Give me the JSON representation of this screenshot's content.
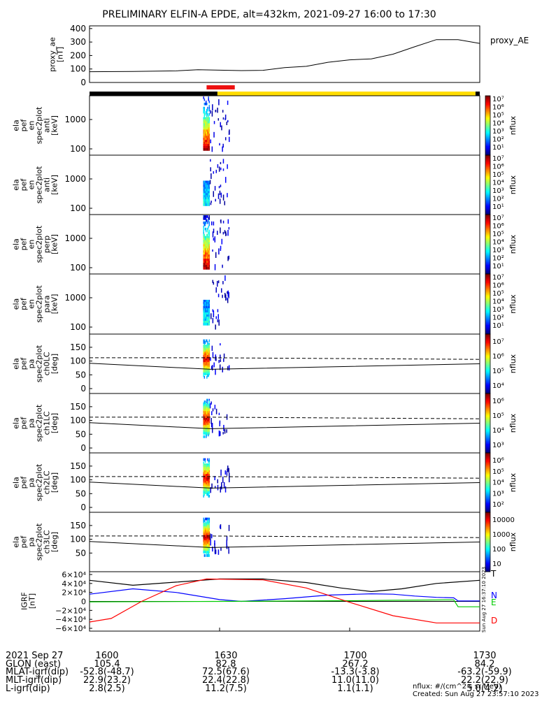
{
  "chart_data": {
    "type": "spectrogram-stack",
    "title": "PRELIMINARY ELFIN-A EPDE, alt=432km, 2021-09-27 16:00 to 17:30",
    "x": {
      "range": [
        "16:00",
        "17:30"
      ],
      "tick_labels": [
        "1600",
        "1630",
        "1700",
        "1730"
      ]
    },
    "proxy_ae": {
      "ylabel": "proxy_ae\n[nT]",
      "legend": "proxy_AE",
      "ylim": [
        0,
        420
      ],
      "yticks": [
        "400",
        "300",
        "200",
        "100",
        "0"
      ],
      "t_min": [
        0,
        10,
        20,
        25,
        35,
        40,
        45,
        50,
        55,
        60,
        65,
        70,
        75,
        80,
        85,
        90
      ],
      "values": [
        80,
        82,
        86,
        95,
        88,
        90,
        110,
        120,
        150,
        168,
        175,
        210,
        265,
        318,
        318,
        290
      ]
    },
    "status_bar": {
      "black_segments": [
        [
          0,
          29.5
        ],
        [
          89,
          90
        ]
      ],
      "yellow_segments": [
        [
          29.5,
          89
        ]
      ],
      "red_segment": [
        27,
        33.5
      ]
    },
    "energy_panels": [
      {
        "ylabel": "ela\npef\nen\nspec2plot\nanti\n[keV]",
        "yticks": [
          "1000",
          "100"
        ],
        "cbar": "log7",
        "strength": 1.0
      },
      {
        "ylabel": "ela\npef\nen\nspec2plot\nanti\n[keV]",
        "yticks": [
          "1000",
          "100"
        ],
        "cbar": "log7",
        "strength": 0.35
      },
      {
        "ylabel": "ela\npef\nen\nspec2plot\nperp\n[keV]",
        "yticks": [
          "1000",
          "100"
        ],
        "cbar": "log7",
        "strength": 1.0
      },
      {
        "ylabel": "ela\npef\nen\nspec2plot\npara\n[keV]",
        "yticks": [
          "1000",
          "100"
        ],
        "cbar": "log7",
        "strength": 0.35
      }
    ],
    "pitch_panels": [
      {
        "ylabel": "ela\npef\npa\nspec2plot\nch0LC\n[deg]",
        "yticks": [
          "150",
          "100",
          "50",
          "0"
        ],
        "cbar_labels": [
          "10⁷",
          "10⁶",
          "10⁵",
          "10⁴"
        ]
      },
      {
        "ylabel": "ela\npef\npa\nspec2plot\nch1LC\n[deg]",
        "yticks": [
          "150",
          "100",
          "50",
          "0"
        ],
        "cbar_labels": [
          "10⁶",
          "10⁵",
          "10⁴",
          "10³"
        ]
      },
      {
        "ylabel": "ela\npef\npa\nspec2plot\nch2LC\n[deg]",
        "yticks": [
          "150",
          "100",
          "50",
          "0"
        ],
        "cbar_labels": [
          "10⁶",
          "10⁵",
          "10⁴",
          "10³",
          "10²"
        ]
      },
      {
        "ylabel": "ela\npef\npa\nspec2plot\nch3LC\n[deg]",
        "yticks": [
          "150",
          "100",
          "50"
        ],
        "cbar_labels": [
          "10000",
          "1000",
          "100",
          "10"
        ]
      }
    ],
    "lc_deg": {
      "t_min": [
        0,
        28,
        90
      ],
      "solid": [
        92,
        70,
        90
      ],
      "dashed": [
        112,
        112,
        106
      ]
    },
    "cbar_title": "nflux",
    "igrf": {
      "ylabel": "IGRF\n[nT]",
      "ytick_labels": [
        "6×10⁴",
        "4×10⁴",
        "2×10⁴",
        "0",
        "−2×10⁴",
        "−4×10⁴",
        "−6×10⁴"
      ],
      "ylim": [
        -60000,
        60000
      ],
      "series": [
        {
          "name": "T",
          "color": "#000000",
          "t_min": [
            0,
            10,
            20,
            30,
            40,
            50,
            58,
            65,
            72,
            80,
            90
          ],
          "values": [
            47000,
            36000,
            43000,
            50000,
            50000,
            42000,
            30000,
            22000,
            28000,
            40000,
            47000
          ]
        },
        {
          "name": "N",
          "color": "#0000ff",
          "t_min": [
            0,
            10,
            20,
            30,
            35,
            45,
            55,
            65,
            70,
            75,
            80,
            84,
            85,
            90
          ],
          "values": [
            16000,
            28000,
            20000,
            4000,
            0,
            6000,
            14000,
            17000,
            16000,
            12000,
            9000,
            8000,
            1000,
            1000
          ]
        },
        {
          "name": "E",
          "color": "#00cc00",
          "t_min": [
            0,
            30,
            60,
            70,
            84,
            85,
            90
          ],
          "values": [
            -1000,
            0,
            1500,
            2500,
            3500,
            -12000,
            -12000
          ]
        },
        {
          "name": "D",
          "color": "#ff0000",
          "t_min": [
            0,
            5,
            12,
            20,
            27,
            40,
            50,
            60,
            70,
            80,
            90
          ],
          "values": [
            -46000,
            -38000,
            0,
            35000,
            50000,
            48000,
            30000,
            -2000,
            -32000,
            -48000,
            -48000
          ]
        }
      ]
    }
  },
  "footer": {
    "rows": [
      [
        "2021 Sep 27",
        "1600",
        "1630",
        "1700",
        "1730"
      ],
      [
        "GLON (east)",
        "105.4",
        "82.8",
        "267.2",
        "84.2"
      ],
      [
        "MLAT-igrf(dip)",
        "-52.8(-48.7)",
        "72.5(67.6)",
        "-13.3(-3.8)",
        "-63.2(-59.9)"
      ],
      [
        "MLT-igrf(dip)",
        "22.9(23.2)",
        "22.4(22.8)",
        "11.0(11.0)",
        "22.2(22.9)"
      ],
      [
        "L-igrf(dip)",
        "2.8(2.5)",
        "11.2(7.5)",
        "1.1(1.1)",
        "5.0(4.2)"
      ]
    ],
    "units": "nflux: #/(cm^2 s sr MeV)",
    "created": "Created: Sun Aug 27 23:57:10 2023",
    "side_stamp": "Sun Aug 27 16:37:10 2023"
  }
}
